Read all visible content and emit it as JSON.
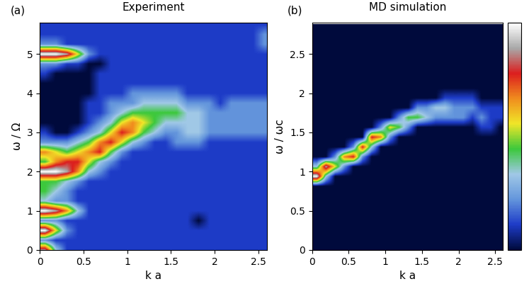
{
  "chart_data": [
    {
      "type": "heatmap",
      "panel": "(a)",
      "title": "Experiment",
      "x_label": "k a",
      "y_label": "ω / Ω",
      "xlim": [
        0,
        2.6
      ],
      "ylim": [
        0,
        5.8
      ],
      "xticks": [
        0,
        0.5,
        1,
        1.5,
        2,
        2.5
      ],
      "yticks": [
        0,
        1,
        2,
        3,
        4,
        5
      ],
      "color_range": [
        0,
        9
      ],
      "x": [
        0.0625,
        0.1875,
        0.3125,
        0.4375,
        0.5625,
        0.6875,
        0.8125,
        0.9375,
        1.0625,
        1.1875,
        1.3125,
        1.4375,
        1.5625,
        1.6875,
        1.8125,
        1.9375,
        2.0625,
        2.1875,
        2.3125,
        2.4375,
        2.5625
      ],
      "y": [
        0,
        0.25,
        0.5,
        0.75,
        1,
        1.25,
        1.5,
        1.75,
        2,
        2.25,
        2.5,
        2.75,
        3,
        3.25,
        3.5,
        3.75,
        4,
        4.25,
        4.5,
        4.75,
        5,
        5.25,
        5.5,
        5.75
      ],
      "cells": [
        [
          8,
          3,
          1,
          1,
          1,
          1,
          1,
          1,
          1,
          1,
          1,
          1,
          1,
          1,
          1,
          1,
          1,
          1,
          1,
          1,
          1
        ],
        [
          2,
          1,
          1,
          1,
          1,
          1,
          1,
          1,
          1,
          1,
          1,
          1,
          1,
          1,
          1,
          1,
          1,
          1,
          1,
          1,
          1
        ],
        [
          9,
          5,
          2,
          1,
          1,
          1,
          1,
          1,
          1,
          1,
          1,
          1,
          1,
          1,
          1,
          1,
          1,
          1,
          1,
          1,
          1
        ],
        [
          2,
          2,
          1,
          1,
          1,
          1,
          1,
          1,
          1,
          1,
          1,
          1,
          1,
          1,
          0,
          1,
          1,
          1,
          1,
          1,
          1
        ],
        [
          9,
          8,
          6,
          3,
          1,
          1,
          1,
          1,
          1,
          1,
          1,
          1,
          1,
          1,
          1,
          1,
          1,
          1,
          1,
          1,
          1
        ],
        [
          3,
          2,
          2,
          1,
          1,
          1,
          1,
          1,
          1,
          1,
          1,
          1,
          1,
          1,
          1,
          1,
          1,
          1,
          1,
          1,
          1
        ],
        [
          4,
          3,
          2,
          1,
          1,
          1,
          1,
          1,
          1,
          1,
          1,
          1,
          1,
          1,
          1,
          1,
          1,
          1,
          1,
          1,
          1
        ],
        [
          4,
          4,
          3,
          2,
          1,
          1,
          1,
          1,
          1,
          1,
          1,
          1,
          1,
          1,
          1,
          1,
          1,
          1,
          1,
          1,
          1
        ],
        [
          9,
          9,
          8,
          6,
          3,
          2,
          1,
          1,
          1,
          1,
          1,
          1,
          1,
          1,
          1,
          1,
          1,
          1,
          1,
          1,
          1
        ],
        [
          4,
          6,
          7,
          7,
          5,
          3,
          2,
          1,
          1,
          1,
          1,
          1,
          1,
          1,
          1,
          1,
          1,
          1,
          1,
          1,
          1
        ],
        [
          6,
          5,
          4,
          5,
          6,
          7,
          4,
          2,
          1,
          1,
          1,
          1,
          1,
          1,
          1,
          1,
          1,
          1,
          1,
          1,
          1
        ],
        [
          2,
          2,
          2,
          3,
          4,
          6,
          7,
          5,
          3,
          2,
          1,
          1,
          2,
          2,
          2,
          1,
          1,
          1,
          1,
          1,
          1
        ],
        [
          1,
          0,
          0,
          1,
          2,
          3,
          5,
          7,
          6,
          4,
          3,
          2,
          2,
          3,
          3,
          2,
          2,
          2,
          2,
          2,
          2
        ],
        [
          0,
          0,
          0,
          0,
          1,
          2,
          3,
          5,
          6,
          5,
          4,
          3,
          3,
          3,
          3,
          2,
          2,
          2,
          2,
          2,
          2
        ],
        [
          0,
          0,
          0,
          0,
          1,
          1,
          2,
          3,
          4,
          4,
          4,
          4,
          4,
          3,
          3,
          2,
          2,
          2,
          2,
          2,
          2
        ],
        [
          0,
          0,
          0,
          0,
          1,
          1,
          2,
          2,
          2,
          3,
          3,
          3,
          3,
          2,
          2,
          2,
          1,
          2,
          2,
          2,
          2
        ],
        [
          0,
          0,
          0,
          0,
          0,
          1,
          1,
          1,
          2,
          2,
          2,
          2,
          2,
          1,
          1,
          1,
          1,
          1,
          1,
          1,
          1
        ],
        [
          0,
          0,
          0,
          0,
          0,
          1,
          1,
          1,
          1,
          1,
          1,
          1,
          1,
          1,
          1,
          1,
          1,
          1,
          1,
          1,
          1
        ],
        [
          1,
          0,
          0,
          0,
          0,
          1,
          1,
          1,
          1,
          1,
          1,
          1,
          1,
          1,
          1,
          1,
          1,
          1,
          1,
          1,
          1
        ],
        [
          2,
          2,
          1,
          1,
          0,
          0,
          1,
          1,
          1,
          1,
          1,
          1,
          1,
          1,
          1,
          1,
          1,
          1,
          1,
          1,
          1
        ],
        [
          9,
          9,
          8,
          5,
          2,
          1,
          1,
          1,
          1,
          1,
          1,
          1,
          1,
          1,
          1,
          1,
          1,
          1,
          1,
          1,
          1
        ],
        [
          2,
          2,
          1,
          1,
          1,
          1,
          1,
          1,
          1,
          1,
          1,
          1,
          1,
          1,
          1,
          1,
          1,
          1,
          1,
          1,
          2
        ],
        [
          1,
          1,
          1,
          1,
          1,
          1,
          1,
          1,
          1,
          1,
          1,
          1,
          1,
          1,
          1,
          1,
          1,
          1,
          1,
          1,
          2
        ],
        [
          1,
          1,
          1,
          1,
          1,
          1,
          1,
          1,
          1,
          1,
          1,
          1,
          1,
          1,
          1,
          1,
          1,
          1,
          1,
          1,
          1
        ]
      ]
    },
    {
      "type": "heatmap",
      "panel": "(b)",
      "title": "MD simulation",
      "x_label": "k a",
      "y_label": "ω / ωc",
      "xlim": [
        0,
        2.6
      ],
      "ylim": [
        0,
        2.9
      ],
      "xticks": [
        0,
        0.5,
        1,
        1.5,
        2,
        2.5
      ],
      "yticks": [
        0,
        0.5,
        1,
        1.5,
        2,
        2.5
      ],
      "color_range": [
        0,
        9
      ],
      "x": [
        0.0625,
        0.1875,
        0.3125,
        0.4375,
        0.5625,
        0.6875,
        0.8125,
        0.9375,
        1.0625,
        1.1875,
        1.3125,
        1.4375,
        1.5625,
        1.6875,
        1.8125,
        1.9375,
        2.0625,
        2.1875,
        2.3125,
        2.4375,
        2.5625
      ],
      "y": [
        0.0625,
        0.1875,
        0.3125,
        0.4375,
        0.5625,
        0.6875,
        0.8125,
        0.9375,
        1.0625,
        1.1875,
        1.3125,
        1.4375,
        1.5625,
        1.6875,
        1.8125,
        1.9375,
        2.0625,
        2.1875,
        2.3125,
        2.4375,
        2.5625,
        2.6875,
        2.8125
      ],
      "cells": [
        [
          0,
          0,
          0,
          0,
          0,
          0,
          0,
          0,
          0,
          0,
          0,
          0,
          0,
          0,
          0,
          0,
          0,
          0,
          0,
          0,
          0
        ],
        [
          0,
          0,
          0,
          0,
          0,
          0,
          0,
          0,
          0,
          0,
          0,
          0,
          0,
          0,
          0,
          0,
          0,
          0,
          0,
          0,
          0
        ],
        [
          0,
          0,
          0,
          0,
          0,
          0,
          0,
          0,
          0,
          0,
          0,
          0,
          0,
          0,
          0,
          0,
          0,
          0,
          0,
          0,
          0
        ],
        [
          0,
          0,
          0,
          0,
          0,
          0,
          0,
          0,
          0,
          0,
          0,
          0,
          0,
          0,
          0,
          0,
          0,
          0,
          0,
          0,
          0
        ],
        [
          0,
          0,
          0,
          0,
          0,
          0,
          0,
          0,
          0,
          0,
          0,
          0,
          0,
          0,
          0,
          0,
          0,
          0,
          0,
          0,
          0
        ],
        [
          0,
          0,
          0,
          0,
          0,
          0,
          0,
          0,
          0,
          0,
          0,
          0,
          0,
          0,
          0,
          0,
          0,
          0,
          0,
          0,
          0
        ],
        [
          0,
          0,
          0,
          0,
          0,
          0,
          0,
          0,
          0,
          0,
          0,
          0,
          0,
          0,
          0,
          0,
          0,
          0,
          0,
          0,
          0
        ],
        [
          9,
          3,
          0,
          0,
          0,
          0,
          0,
          0,
          0,
          0,
          0,
          0,
          0,
          0,
          0,
          0,
          0,
          0,
          0,
          0,
          0
        ],
        [
          3,
          8,
          5,
          2,
          0,
          0,
          0,
          0,
          0,
          0,
          0,
          0,
          0,
          0,
          0,
          0,
          0,
          0,
          0,
          0,
          0
        ],
        [
          0,
          0,
          2,
          6,
          7,
          2,
          0,
          0,
          0,
          0,
          0,
          0,
          0,
          0,
          0,
          0,
          0,
          0,
          0,
          0,
          0
        ],
        [
          0,
          0,
          0,
          0,
          2,
          7,
          3,
          0,
          0,
          0,
          0,
          0,
          0,
          0,
          0,
          0,
          0,
          0,
          0,
          0,
          0
        ],
        [
          0,
          0,
          0,
          0,
          0,
          0,
          7,
          6,
          2,
          0,
          0,
          0,
          0,
          0,
          0,
          0,
          0,
          0,
          0,
          0,
          0
        ],
        [
          0,
          0,
          0,
          0,
          0,
          0,
          0,
          2,
          5,
          4,
          2,
          0,
          0,
          0,
          0,
          0,
          0,
          0,
          1,
          1,
          0
        ],
        [
          0,
          0,
          0,
          0,
          0,
          0,
          0,
          0,
          0,
          2,
          4,
          4,
          3,
          2,
          2,
          2,
          2,
          1,
          2,
          1,
          1
        ],
        [
          0,
          0,
          0,
          0,
          0,
          0,
          0,
          0,
          0,
          0,
          0,
          2,
          2,
          3,
          3,
          2,
          2,
          2,
          1,
          1,
          1
        ],
        [
          0,
          0,
          0,
          0,
          0,
          0,
          0,
          0,
          0,
          0,
          0,
          0,
          0,
          0,
          1,
          1,
          1,
          1,
          0,
          0,
          0
        ],
        [
          0,
          0,
          0,
          0,
          0,
          0,
          0,
          0,
          0,
          0,
          0,
          0,
          0,
          0,
          0,
          0,
          0,
          0,
          0,
          0,
          0
        ],
        [
          0,
          0,
          0,
          0,
          0,
          0,
          0,
          0,
          0,
          0,
          0,
          0,
          0,
          0,
          0,
          0,
          0,
          0,
          0,
          0,
          0
        ],
        [
          0,
          0,
          0,
          0,
          0,
          0,
          0,
          0,
          0,
          0,
          0,
          0,
          0,
          0,
          0,
          0,
          0,
          0,
          0,
          0,
          0
        ],
        [
          0,
          0,
          0,
          0,
          0,
          0,
          0,
          0,
          0,
          0,
          0,
          0,
          0,
          0,
          0,
          0,
          0,
          0,
          0,
          0,
          0
        ],
        [
          0,
          0,
          0,
          0,
          0,
          0,
          0,
          0,
          0,
          0,
          0,
          0,
          0,
          0,
          0,
          0,
          0,
          0,
          0,
          0,
          0
        ],
        [
          0,
          0,
          0,
          0,
          0,
          0,
          0,
          0,
          0,
          0,
          0,
          0,
          0,
          0,
          0,
          0,
          0,
          0,
          0,
          0,
          0
        ],
        [
          0,
          0,
          0,
          0,
          0,
          0,
          0,
          0,
          0,
          0,
          0,
          0,
          0,
          0,
          0,
          0,
          0,
          0,
          0,
          0,
          0
        ]
      ]
    }
  ]
}
